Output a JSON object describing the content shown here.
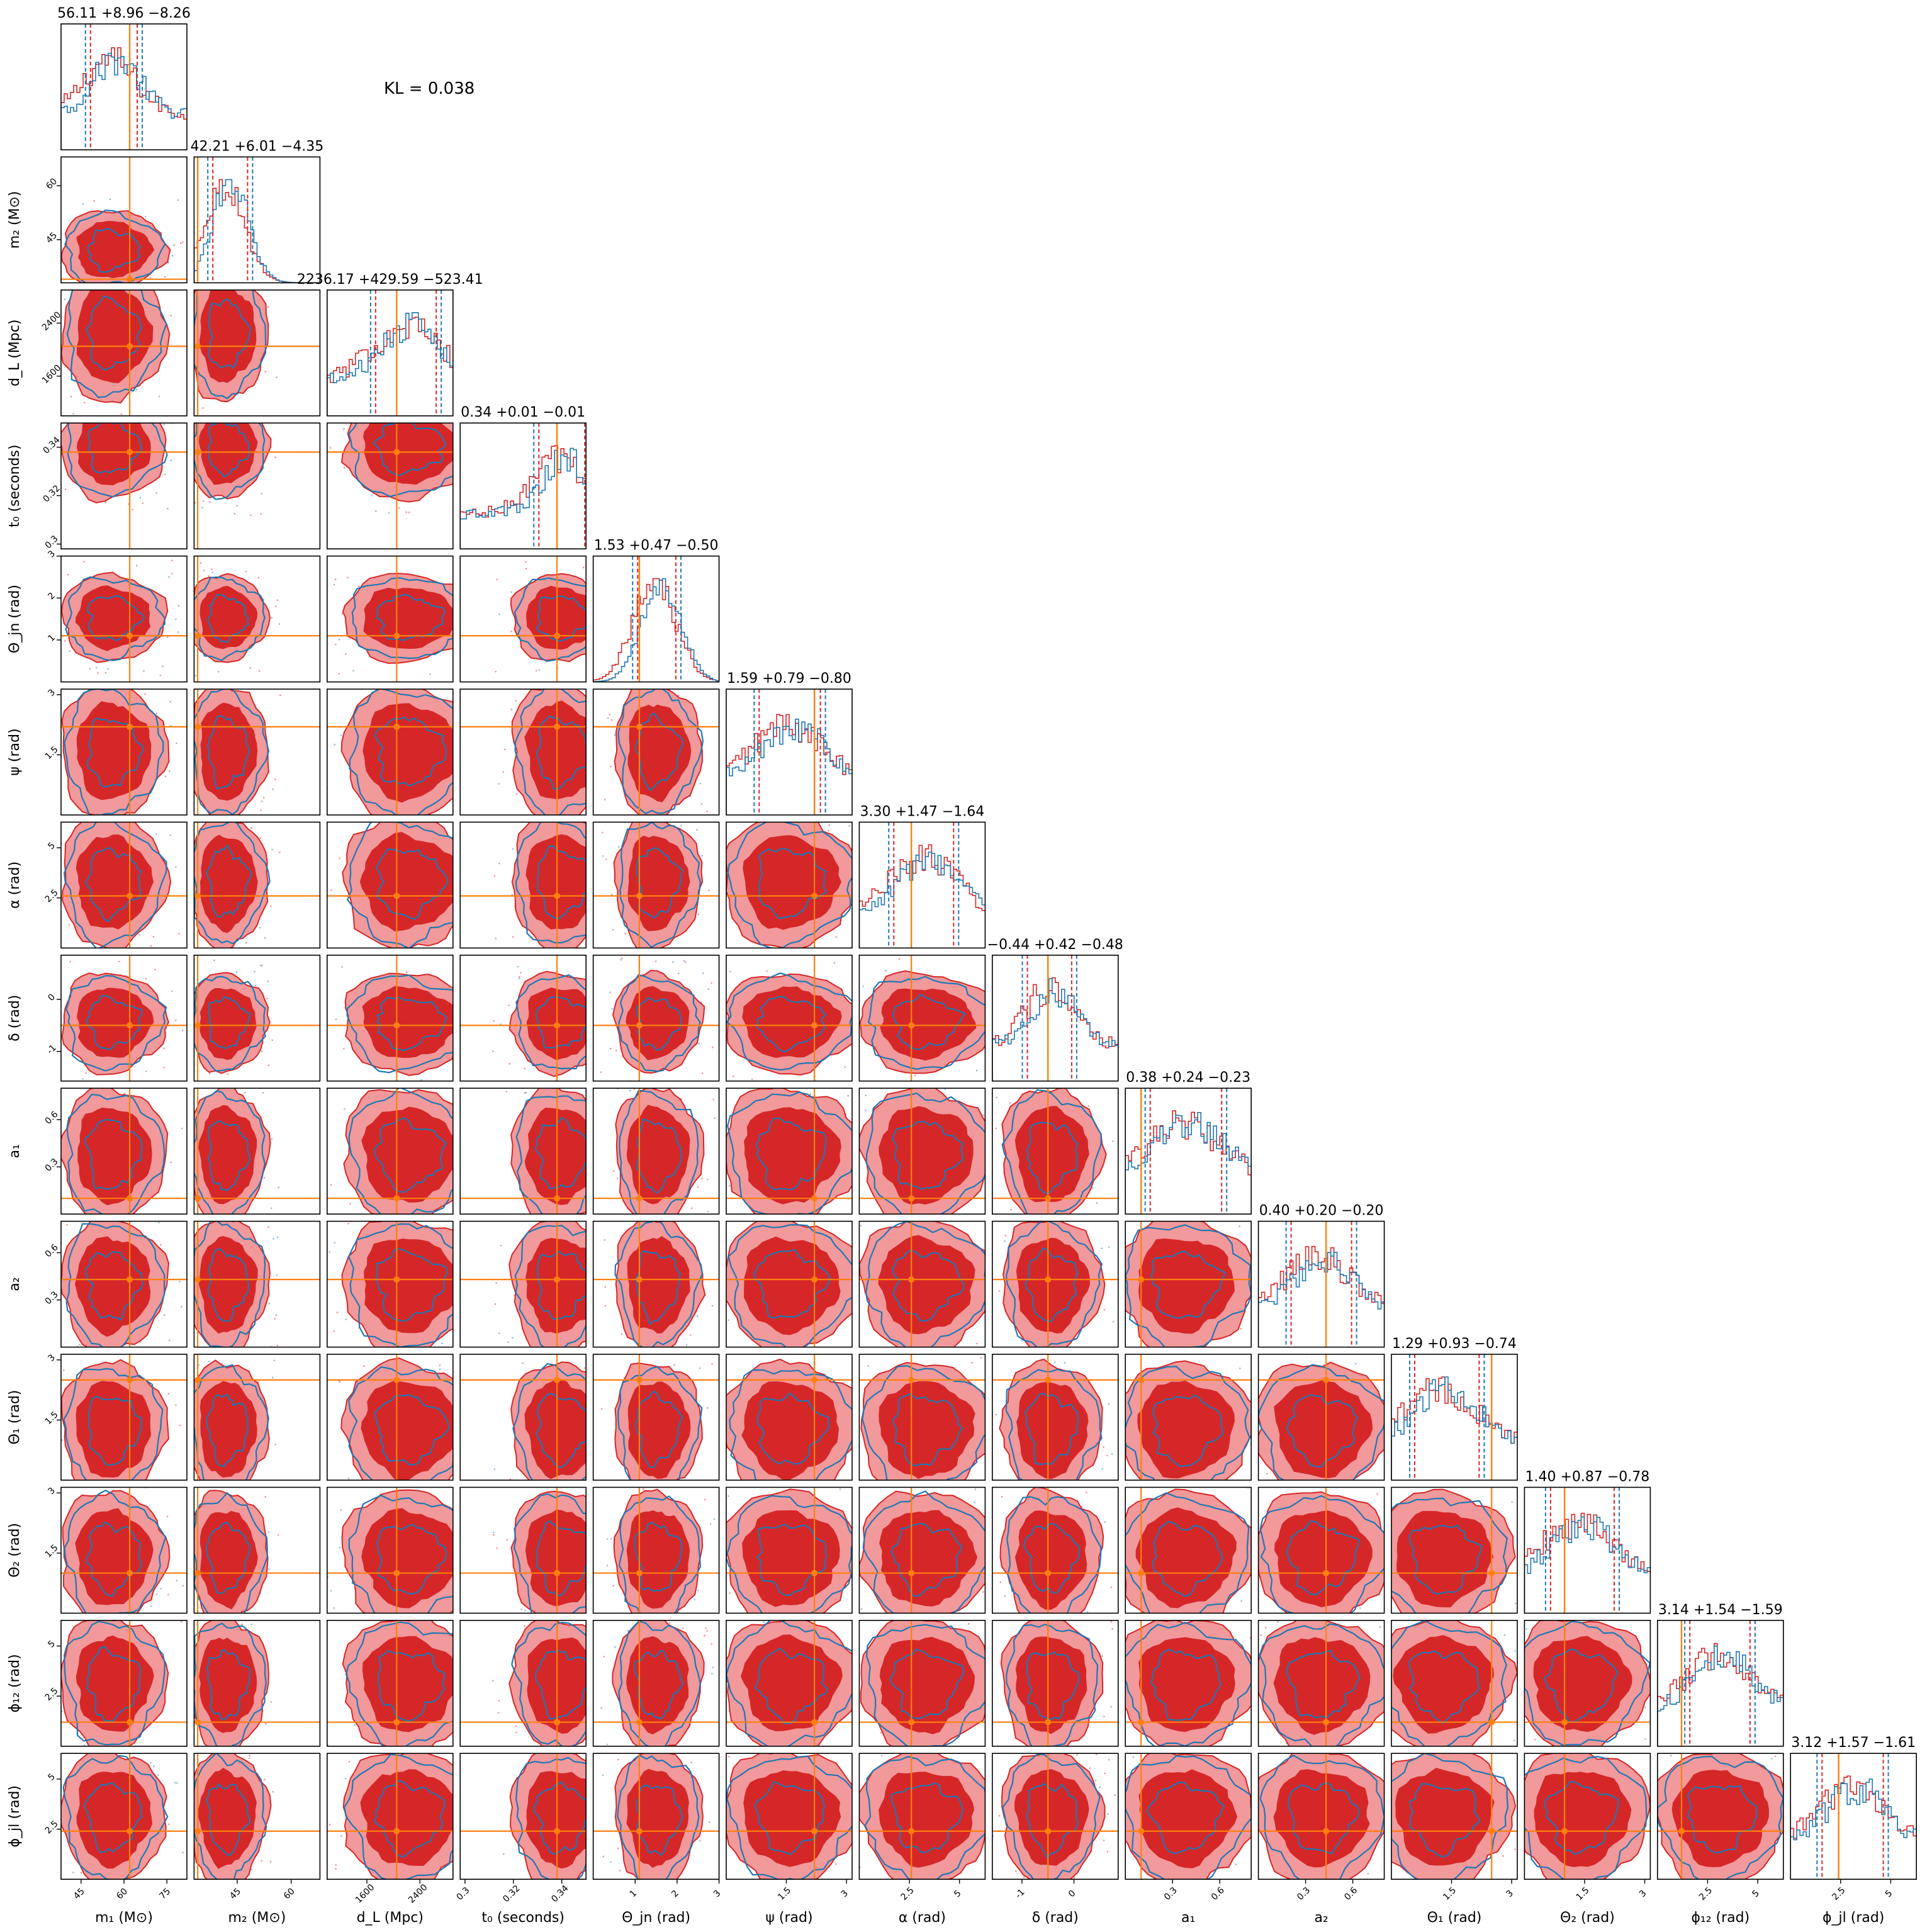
{
  "annotation": {
    "kl": "KL = 0.038"
  },
  "colors": {
    "red_dark": "#d62728",
    "red_light": "#f1999b",
    "blue": "#1f77b4",
    "truth": "#ff7f0e"
  },
  "chart_data": {
    "type": "corner",
    "parameters": [
      {
        "label": "m₁ (M⊙)",
        "title": "56.11 +8.96 −8.26",
        "median": 56.11,
        "plus": 8.96,
        "minus": 8.26,
        "range": [
          38,
          82
        ],
        "ticks": [
          45,
          60,
          75
        ],
        "truth": 62
      },
      {
        "label": "m₂ (M⊙)",
        "title": "42.21 +6.01 −4.35",
        "median": 42.21,
        "plus": 6.01,
        "minus": 4.35,
        "range": [
          33,
          68
        ],
        "ticks": [
          45,
          60
        ],
        "truth": 34
      },
      {
        "label": "d_L (Mpc)",
        "title": "2236.17 +429.59 −523.41",
        "median": 2236.17,
        "plus": 429.59,
        "minus": 523.41,
        "range": [
          1000,
          2900
        ],
        "ticks": [
          1600,
          2400
        ],
        "truth": 2050
      },
      {
        "label": "t₀ (seconds)",
        "title": "0.34 +0.01 −0.01",
        "median": 0.34,
        "plus": 0.01,
        "minus": 0.01,
        "range": [
          0.298,
          0.35
        ],
        "ticks": [
          0.3,
          0.32,
          0.34
        ],
        "truth": 0.338
      },
      {
        "label": "Θ_jn (rad)",
        "title": "1.53 +0.47 −0.50",
        "median": 1.53,
        "plus": 0.47,
        "minus": 0.5,
        "range": [
          0.0,
          3.0
        ],
        "ticks": [
          1,
          2,
          3
        ],
        "truth": 1.1
      },
      {
        "label": "ψ (rad)",
        "title": "1.59 +0.79 −0.80",
        "median": 1.59,
        "plus": 0.79,
        "minus": 0.8,
        "range": [
          0.0,
          3.14
        ],
        "ticks": [
          1.5,
          3.0
        ],
        "truth": 2.2
      },
      {
        "label": "α (rad)",
        "title": "3.30 +1.47 −1.64",
        "median": 3.3,
        "plus": 1.47,
        "minus": 1.64,
        "range": [
          0.0,
          6.28
        ],
        "ticks": [
          2.5,
          5.0
        ],
        "truth": 2.6
      },
      {
        "label": "δ (rad)",
        "title": "−0.44 +0.42 −0.48",
        "median": -0.44,
        "plus": 0.42,
        "minus": 0.48,
        "range": [
          -1.57,
          0.85
        ],
        "ticks": [
          -1,
          0
        ],
        "truth": -0.5
      },
      {
        "label": "a₁",
        "title": "0.38 +0.24 −0.23",
        "median": 0.38,
        "plus": 0.24,
        "minus": 0.23,
        "range": [
          0.0,
          0.8
        ],
        "ticks": [
          0.3,
          0.6
        ],
        "truth": 0.1
      },
      {
        "label": "a₂",
        "title": "0.40 +0.20 −0.20",
        "median": 0.4,
        "plus": 0.2,
        "minus": 0.2,
        "range": [
          0.0,
          0.8
        ],
        "ticks": [
          0.3,
          0.6
        ],
        "truth": 0.43
      },
      {
        "label": "Θ₁ (rad)",
        "title": "1.29 +0.93 −0.74",
        "median": 1.29,
        "plus": 0.93,
        "minus": 0.74,
        "range": [
          0.0,
          3.14
        ],
        "ticks": [
          1.5,
          3.0
        ],
        "truth": 2.5
      },
      {
        "label": "Θ₂ (rad)",
        "title": "1.40 +0.87 −0.78",
        "median": 1.4,
        "plus": 0.87,
        "minus": 0.78,
        "range": [
          0.0,
          3.14
        ],
        "ticks": [
          1.5,
          3.0
        ],
        "truth": 1.0
      },
      {
        "label": "ϕ₁₂ (rad)",
        "title": "3.14 +1.54 −1.59",
        "median": 3.14,
        "plus": 1.54,
        "minus": 1.59,
        "range": [
          0.0,
          6.28
        ],
        "ticks": [
          2.5,
          5.0
        ],
        "truth": 1.2
      },
      {
        "label": "ϕ_jl (rad)",
        "title": "3.12 +1.57 −1.61",
        "median": 3.12,
        "plus": 1.57,
        "minus": 1.61,
        "range": [
          0.0,
          6.28
        ],
        "ticks": [
          2.5,
          5.0
        ],
        "truth": 2.4
      }
    ]
  }
}
